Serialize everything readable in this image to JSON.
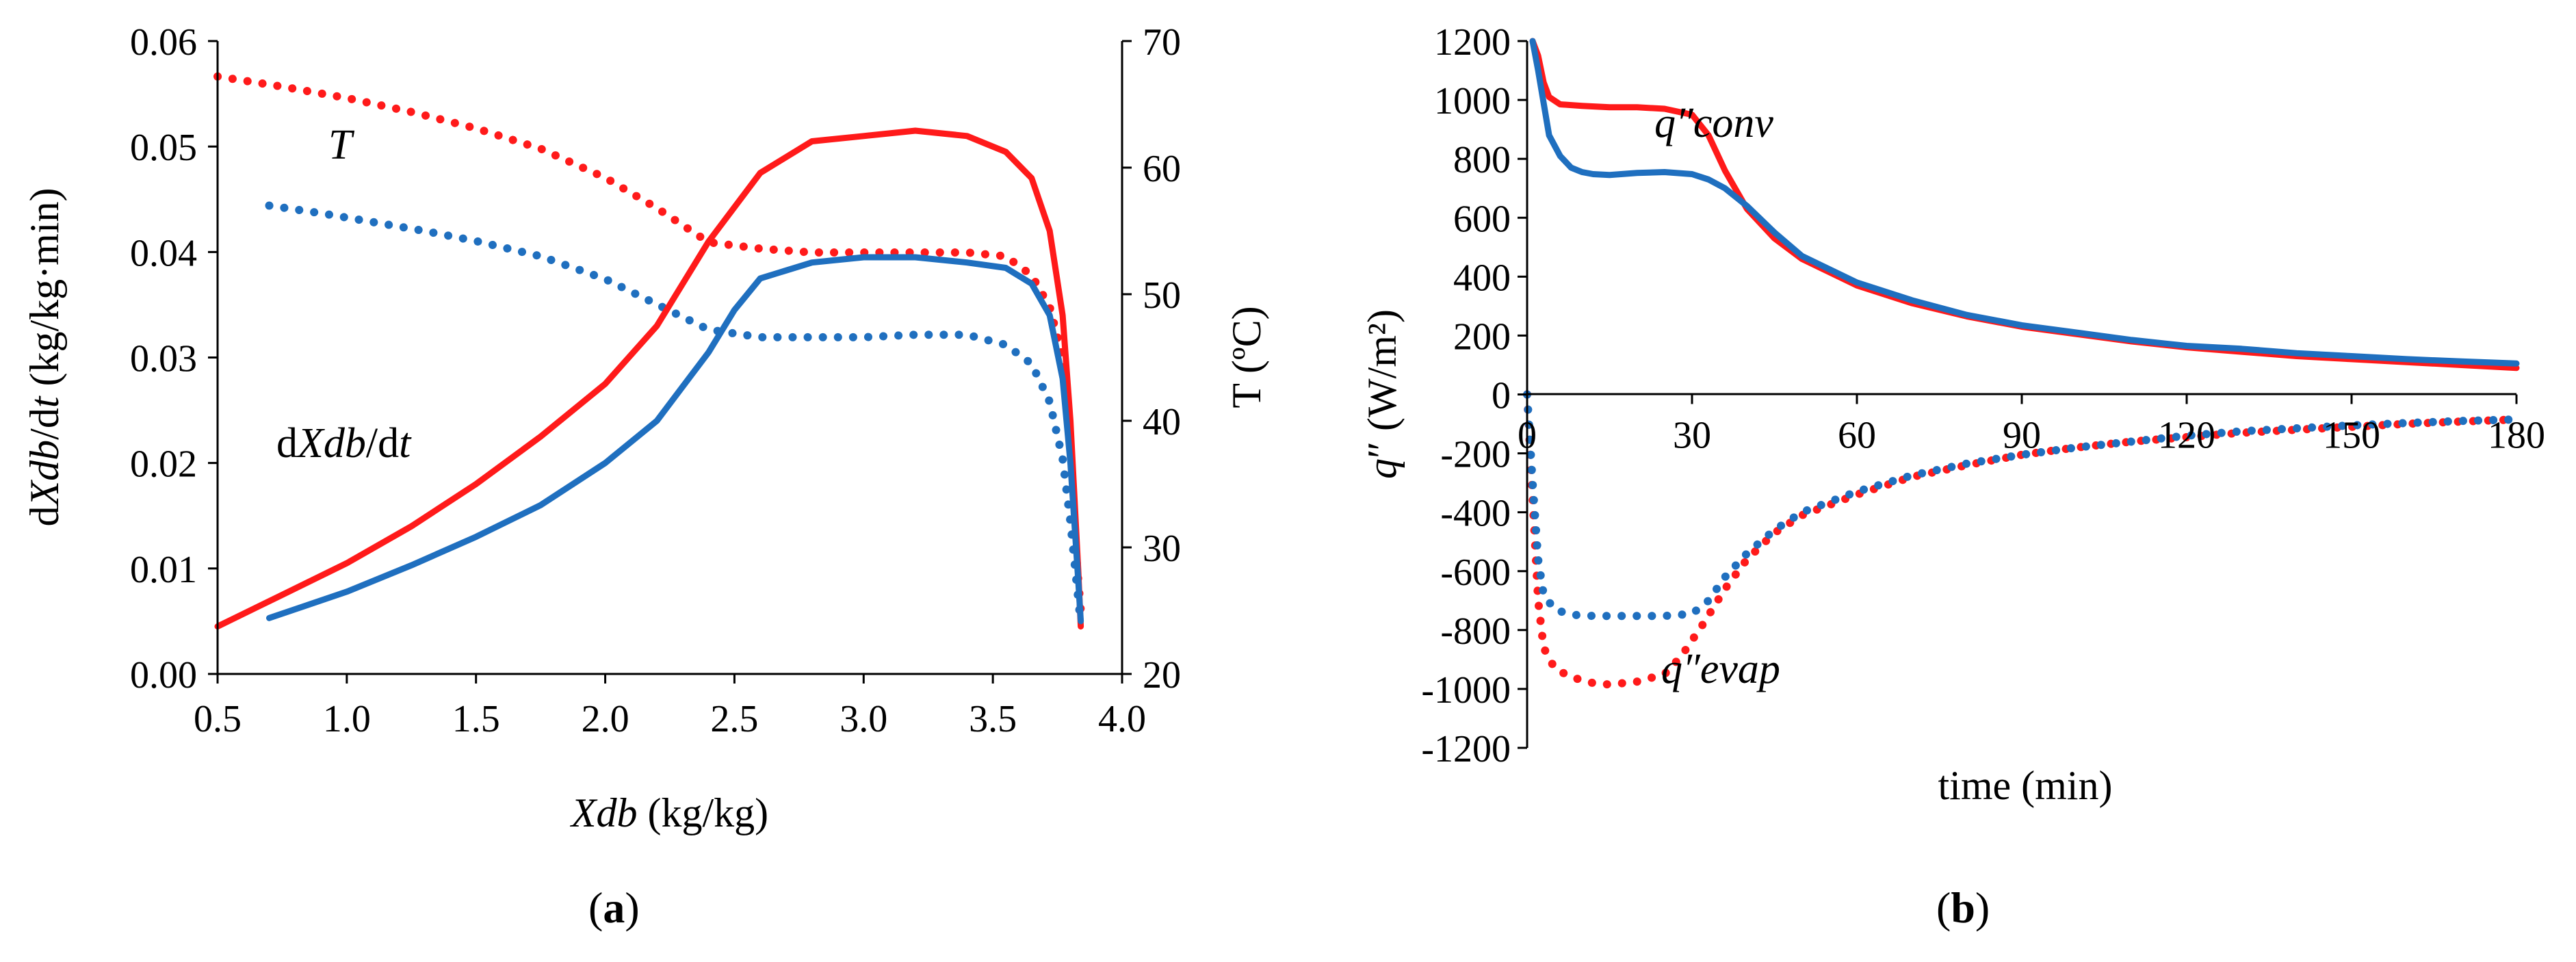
{
  "colors": {
    "red": "#ff1a1a",
    "blue": "#1f6fbf",
    "axis": "#000000"
  },
  "chart_data": [
    {
      "id": "a",
      "type": "line",
      "panel_label": "(a)",
      "panel_letter": "a",
      "xlabel_var": "Xdb",
      "xlabel_var_sub": "",
      "xlabel_unit": " (kg/kg)",
      "ylabel_left": {
        "pre": "d",
        "var": "Xdb",
        "mid": "/d",
        "t": "t",
        "post": " (kg/kg·min)"
      },
      "ylabel_right": "T (ºC)",
      "xlim": [
        0.5,
        4.0
      ],
      "ylim_left": [
        0.0,
        0.06
      ],
      "ylim_right": [
        20,
        70
      ],
      "xticks": [
        "0.5",
        "1.0",
        "1.5",
        "2.0",
        "2.5",
        "3.0",
        "3.5",
        "4.0"
      ],
      "xtick_values": [
        0.5,
        1.0,
        1.5,
        2.0,
        2.5,
        3.0,
        3.5,
        4.0
      ],
      "yticks_left": [
        "0.00",
        "0.01",
        "0.02",
        "0.03",
        "0.04",
        "0.05",
        "0.06"
      ],
      "ytick_values_left": [
        0.0,
        0.01,
        0.02,
        0.03,
        0.04,
        0.05,
        0.06
      ],
      "yticks_right": [
        "20",
        "30",
        "40",
        "50",
        "60",
        "70"
      ],
      "ytick_values_right": [
        20,
        30,
        40,
        50,
        60,
        70
      ],
      "annotations": {
        "T": "T",
        "rate": {
          "pre": "d",
          "var": "Xdb",
          "mid": "/d",
          "t": "t"
        }
      },
      "series": [
        {
          "name": "drying rate (red)",
          "axis": "left",
          "style": "solid",
          "color": "red",
          "x": [
            0.5,
            0.75,
            1.0,
            1.25,
            1.5,
            1.75,
            2.0,
            2.2,
            2.4,
            2.6,
            2.8,
            3.0,
            3.2,
            3.4,
            3.55,
            3.65,
            3.72,
            3.77,
            3.8,
            3.83,
            3.84
          ],
          "y": [
            0.0045,
            0.0075,
            0.0105,
            0.014,
            0.018,
            0.0225,
            0.0275,
            0.033,
            0.041,
            0.0475,
            0.0505,
            0.051,
            0.0515,
            0.051,
            0.0495,
            0.047,
            0.042,
            0.034,
            0.024,
            0.01,
            0.0045
          ]
        },
        {
          "name": "drying rate (blue)",
          "axis": "left",
          "style": "solid",
          "color": "blue",
          "x": [
            0.7,
            1.0,
            1.25,
            1.5,
            1.75,
            2.0,
            2.2,
            2.4,
            2.5,
            2.6,
            2.8,
            3.0,
            3.2,
            3.4,
            3.55,
            3.65,
            3.72,
            3.77,
            3.8,
            3.83,
            3.84
          ],
          "y": [
            0.0053,
            0.0078,
            0.0103,
            0.013,
            0.016,
            0.02,
            0.024,
            0.0305,
            0.0345,
            0.0375,
            0.039,
            0.0395,
            0.0395,
            0.039,
            0.0385,
            0.037,
            0.034,
            0.028,
            0.02,
            0.009,
            0.005
          ]
        },
        {
          "name": "T (red)",
          "axis": "right",
          "style": "dotted",
          "color": "red",
          "x": [
            0.5,
            0.75,
            1.0,
            1.25,
            1.5,
            1.75,
            2.0,
            2.2,
            2.4,
            2.6,
            2.8,
            3.0,
            3.2,
            3.4,
            3.55,
            3.65,
            3.72,
            3.77,
            3.8,
            3.82,
            3.84
          ],
          "y": [
            67.2,
            66.4,
            65.5,
            64.4,
            63.1,
            61.5,
            59.2,
            56.8,
            54.1,
            53.6,
            53.3,
            53.3,
            53.3,
            53.3,
            53.0,
            51.5,
            49.0,
            45.0,
            38.0,
            30.0,
            25.0
          ]
        },
        {
          "name": "T (blue)",
          "axis": "right",
          "style": "dotted",
          "color": "blue",
          "x": [
            0.7,
            0.9,
            1.1,
            1.3,
            1.5,
            1.75,
            2.0,
            2.2,
            2.4,
            2.6,
            2.8,
            3.0,
            3.2,
            3.4,
            3.55,
            3.65,
            3.72,
            3.77,
            3.8,
            3.82,
            3.84
          ],
          "y": [
            57.0,
            56.4,
            55.7,
            55.0,
            54.2,
            53.0,
            51.2,
            49.2,
            47.2,
            46.6,
            46.6,
            46.6,
            46.8,
            46.8,
            46.0,
            44.5,
            41.5,
            37.0,
            32.0,
            28.0,
            24.0
          ]
        }
      ]
    },
    {
      "id": "b",
      "type": "line",
      "panel_label": "(b)",
      "panel_letter": "b",
      "xlabel": "time (min)",
      "ylabel": {
        "q": "q",
        "rest": "″ (W/m²)"
      },
      "xlim": [
        0,
        180
      ],
      "ylim": [
        -1200,
        1200
      ],
      "xticks": [
        "0",
        "30",
        "60",
        "90",
        "120",
        "150",
        "180"
      ],
      "xtick_values": [
        0,
        30,
        60,
        90,
        120,
        150,
        180
      ],
      "yticks": [
        "1200",
        "1000",
        "800",
        "600",
        "400",
        "200",
        "0",
        "-200",
        "-400",
        "-600",
        "-800",
        "-1000",
        "-1200"
      ],
      "ytick_values": [
        1200,
        1000,
        800,
        600,
        400,
        200,
        0,
        -200,
        -400,
        -600,
        -800,
        -1000,
        -1200
      ],
      "annotations": {
        "conv": "q″conv",
        "evap": "q″evap"
      },
      "series": [
        {
          "name": "q″conv (red)",
          "style": "solid",
          "color": "red",
          "x": [
            1,
            2,
            3,
            4,
            6,
            10,
            15,
            20,
            25,
            30,
            33,
            36,
            40,
            45,
            50,
            60,
            70,
            80,
            90,
            100,
            110,
            120,
            130,
            140,
            150,
            160,
            170,
            180
          ],
          "y": [
            1200,
            1150,
            1060,
            1010,
            985,
            980,
            975,
            975,
            970,
            950,
            880,
            760,
            630,
            530,
            460,
            370,
            310,
            265,
            230,
            205,
            180,
            160,
            145,
            130,
            120,
            110,
            100,
            90
          ]
        },
        {
          "name": "q″conv (blue)",
          "style": "solid",
          "color": "blue",
          "x": [
            1,
            2,
            3,
            4,
            6,
            8,
            10,
            12,
            15,
            20,
            25,
            30,
            33,
            36,
            40,
            45,
            50,
            60,
            70,
            80,
            90,
            100,
            110,
            120,
            130,
            140,
            150,
            160,
            170,
            180
          ],
          "y": [
            1200,
            1100,
            990,
            880,
            810,
            770,
            755,
            748,
            745,
            752,
            755,
            748,
            730,
            700,
            640,
            550,
            470,
            380,
            320,
            270,
            235,
            210,
            185,
            165,
            155,
            140,
            130,
            120,
            112,
            105
          ]
        },
        {
          "name": "q″evap (red)",
          "style": "dotted",
          "color": "red",
          "x": [
            0,
            1,
            2,
            3,
            5,
            8,
            12,
            15,
            20,
            25,
            28,
            32,
            36,
            40,
            45,
            50,
            60,
            70,
            80,
            90,
            100,
            110,
            120,
            130,
            140,
            150,
            160,
            170,
            180
          ],
          "y": [
            0,
            -350,
            -700,
            -860,
            -930,
            -960,
            -980,
            -985,
            -975,
            -950,
            -890,
            -780,
            -660,
            -560,
            -470,
            -410,
            -340,
            -280,
            -240,
            -205,
            -180,
            -160,
            -145,
            -130,
            -120,
            -110,
            -100,
            -92,
            -85
          ]
        },
        {
          "name": "q″evap (blue)",
          "style": "dotted",
          "color": "blue",
          "x": [
            0,
            1,
            2,
            3,
            5,
            8,
            12,
            15,
            20,
            25,
            30,
            33,
            36,
            40,
            45,
            50,
            60,
            70,
            80,
            90,
            100,
            110,
            120,
            130,
            140,
            150,
            160,
            170,
            180
          ],
          "y": [
            0,
            -300,
            -560,
            -680,
            -730,
            -748,
            -752,
            -752,
            -752,
            -752,
            -745,
            -700,
            -620,
            -540,
            -460,
            -400,
            -330,
            -275,
            -235,
            -205,
            -180,
            -160,
            -140,
            -125,
            -115,
            -105,
            -97,
            -90,
            -85
          ]
        }
      ]
    }
  ]
}
